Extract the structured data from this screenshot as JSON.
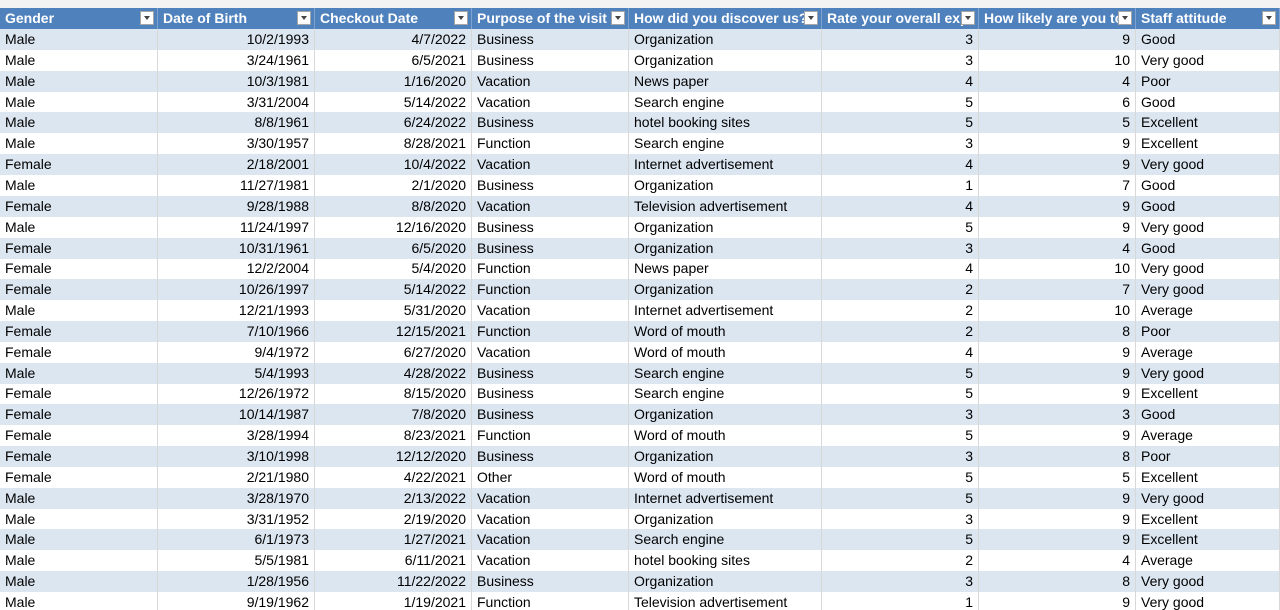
{
  "table": {
    "headers": [
      "Gender",
      "Date of Birth",
      "Checkout Date",
      "Purpose of the visit",
      "How did you discover us?",
      "Rate your overall exp",
      "How likely are you to",
      "Staff attitude"
    ],
    "rows": [
      [
        "Male",
        "10/2/1993",
        "4/7/2022",
        "Business",
        "Organization",
        3,
        9,
        "Good"
      ],
      [
        "Male",
        "3/24/1961",
        "6/5/2021",
        "Business",
        "Organization",
        3,
        10,
        "Very good"
      ],
      [
        "Male",
        "10/3/1981",
        "1/16/2020",
        "Vacation",
        "News paper",
        4,
        4,
        "Poor"
      ],
      [
        "Male",
        "3/31/2004",
        "5/14/2022",
        "Vacation",
        "Search engine",
        5,
        6,
        "Good"
      ],
      [
        "Male",
        "8/8/1961",
        "6/24/2022",
        "Business",
        "hotel booking sites",
        5,
        5,
        "Excellent"
      ],
      [
        "Male",
        "3/30/1957",
        "8/28/2021",
        "Function",
        "Search engine",
        3,
        9,
        "Excellent"
      ],
      [
        "Female",
        "2/18/2001",
        "10/4/2022",
        "Vacation",
        "Internet advertisement",
        4,
        9,
        "Very good"
      ],
      [
        "Male",
        "11/27/1981",
        "2/1/2020",
        "Business",
        "Organization",
        1,
        7,
        "Good"
      ],
      [
        "Female",
        "9/28/1988",
        "8/8/2020",
        "Vacation",
        "Television advertisement",
        4,
        9,
        "Good"
      ],
      [
        "Male",
        "11/24/1997",
        "12/16/2020",
        "Business",
        "Organization",
        5,
        9,
        "Very good"
      ],
      [
        "Female",
        "10/31/1961",
        "6/5/2020",
        "Business",
        "Organization",
        3,
        4,
        "Good"
      ],
      [
        "Female",
        "12/2/2004",
        "5/4/2020",
        "Function",
        "News paper",
        4,
        10,
        "Very good"
      ],
      [
        "Female",
        "10/26/1997",
        "5/14/2022",
        "Function",
        "Organization",
        2,
        7,
        "Very good"
      ],
      [
        "Male",
        "12/21/1993",
        "5/31/2020",
        "Vacation",
        "Internet advertisement",
        2,
        10,
        "Average"
      ],
      [
        "Female",
        "7/10/1966",
        "12/15/2021",
        "Function",
        "Word of mouth",
        2,
        8,
        "Poor"
      ],
      [
        "Female",
        "9/4/1972",
        "6/27/2020",
        "Vacation",
        "Word of mouth",
        4,
        9,
        "Average"
      ],
      [
        "Male",
        "5/4/1993",
        "4/28/2022",
        "Business",
        "Search engine",
        5,
        9,
        "Very good"
      ],
      [
        "Female",
        "12/26/1972",
        "8/15/2020",
        "Business",
        "Search engine",
        5,
        9,
        "Excellent"
      ],
      [
        "Female",
        "10/14/1987",
        "7/8/2020",
        "Business",
        "Organization",
        3,
        3,
        "Good"
      ],
      [
        "Female",
        "3/28/1994",
        "8/23/2021",
        "Function",
        "Word of mouth",
        5,
        9,
        "Average"
      ],
      [
        "Female",
        "3/10/1998",
        "12/12/2020",
        "Business",
        "Organization",
        3,
        8,
        "Poor"
      ],
      [
        "Female",
        "2/21/1980",
        "4/22/2021",
        "Other",
        "Word of mouth",
        5,
        5,
        "Excellent"
      ],
      [
        "Male",
        "3/28/1970",
        "2/13/2022",
        "Vacation",
        "Internet advertisement",
        5,
        9,
        "Very good"
      ],
      [
        "Male",
        "3/31/1952",
        "2/19/2020",
        "Vacation",
        "Organization",
        3,
        9,
        "Excellent"
      ],
      [
        "Male",
        "6/1/1973",
        "1/27/2021",
        "Vacation",
        "Search engine",
        5,
        9,
        "Excellent"
      ],
      [
        "Male",
        "5/5/1981",
        "6/11/2021",
        "Vacation",
        "hotel booking sites",
        2,
        4,
        "Average"
      ],
      [
        "Male",
        "1/28/1956",
        "11/22/2022",
        "Business",
        "Organization",
        3,
        8,
        "Very good"
      ],
      [
        "Male",
        "9/19/1962",
        "1/19/2021",
        "Function",
        "Television advertisement",
        1,
        9,
        "Very good"
      ]
    ]
  }
}
